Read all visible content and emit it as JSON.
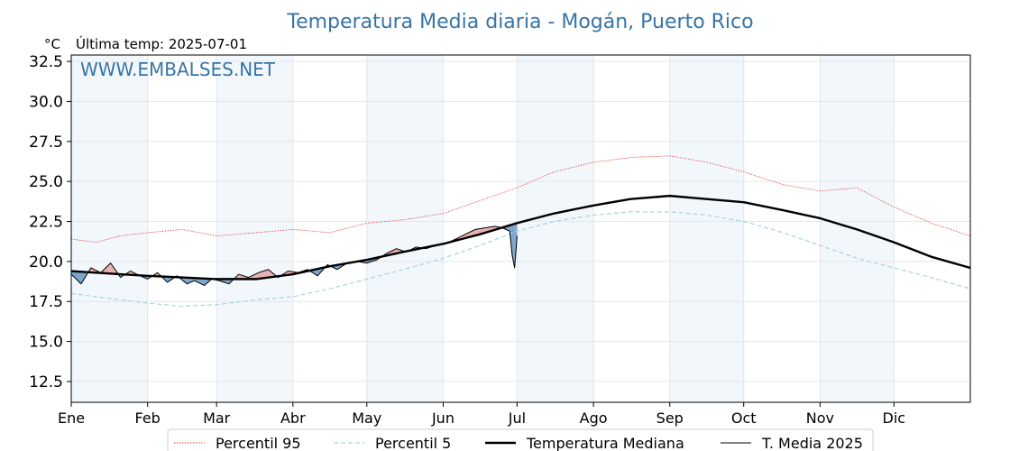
{
  "chart_data": {
    "type": "line",
    "title": "Temperatura Media diaria - Mogán, Puerto Rico",
    "unit_label": "°C",
    "last_temp_label": "Última temp: 2025-07-01",
    "watermark": "WWW.EMBALSES.NET",
    "ylim": [
      11.2,
      32.9
    ],
    "xlim": [
      0,
      365
    ],
    "y_ticks": [
      "12.5",
      "15.0",
      "17.5",
      "20.0",
      "22.5",
      "25.0",
      "27.5",
      "30.0",
      "32.5"
    ],
    "y_tick_values": [
      12.5,
      15.0,
      17.5,
      20.0,
      22.5,
      25.0,
      27.5,
      30.0,
      32.5
    ],
    "months": [
      "Ene",
      "Feb",
      "Mar",
      "Abr",
      "May",
      "Jun",
      "Jul",
      "Ago",
      "Sep",
      "Oct",
      "Nov",
      "Dic"
    ],
    "month_start_days": [
      0,
      31,
      59,
      90,
      120,
      151,
      181,
      212,
      243,
      273,
      304,
      334
    ],
    "shaded_months": [
      0,
      2,
      4,
      6,
      8,
      10
    ],
    "grid": true,
    "legend_position": "bottom-center",
    "series": [
      {
        "key": "p95",
        "name": "Percentil 95",
        "style": "dotted",
        "color": "#e8392f",
        "points": [
          [
            0,
            21.4
          ],
          [
            10,
            21.2
          ],
          [
            20,
            21.6
          ],
          [
            31,
            21.8
          ],
          [
            45,
            22.0
          ],
          [
            59,
            21.6
          ],
          [
            75,
            21.8
          ],
          [
            90,
            22.0
          ],
          [
            105,
            21.8
          ],
          [
            120,
            22.4
          ],
          [
            135,
            22.6
          ],
          [
            151,
            23.0
          ],
          [
            166,
            23.8
          ],
          [
            181,
            24.6
          ],
          [
            196,
            25.6
          ],
          [
            212,
            26.2
          ],
          [
            227,
            26.5
          ],
          [
            243,
            26.6
          ],
          [
            258,
            26.2
          ],
          [
            273,
            25.6
          ],
          [
            289,
            24.8
          ],
          [
            304,
            24.4
          ],
          [
            319,
            24.6
          ],
          [
            334,
            23.4
          ],
          [
            349,
            22.4
          ],
          [
            365,
            21.6
          ]
        ]
      },
      {
        "key": "p5",
        "name": "Percentil 5",
        "style": "dashed",
        "color": "#a8d4e2",
        "points": [
          [
            0,
            18.0
          ],
          [
            10,
            17.8
          ],
          [
            20,
            17.6
          ],
          [
            31,
            17.4
          ],
          [
            45,
            17.2
          ],
          [
            59,
            17.3
          ],
          [
            75,
            17.6
          ],
          [
            90,
            17.8
          ],
          [
            105,
            18.3
          ],
          [
            120,
            18.9
          ],
          [
            135,
            19.5
          ],
          [
            151,
            20.2
          ],
          [
            166,
            21.0
          ],
          [
            181,
            21.9
          ],
          [
            196,
            22.5
          ],
          [
            212,
            22.9
          ],
          [
            227,
            23.1
          ],
          [
            243,
            23.1
          ],
          [
            258,
            22.9
          ],
          [
            273,
            22.5
          ],
          [
            289,
            21.8
          ],
          [
            304,
            21.0
          ],
          [
            319,
            20.2
          ],
          [
            334,
            19.6
          ],
          [
            349,
            19.0
          ],
          [
            365,
            18.3
          ]
        ]
      },
      {
        "key": "median",
        "name": "Temperatura Mediana",
        "style": "solid-thick",
        "color": "#000000",
        "points": [
          [
            0,
            19.4
          ],
          [
            10,
            19.3
          ],
          [
            20,
            19.2
          ],
          [
            31,
            19.1
          ],
          [
            45,
            19.0
          ],
          [
            59,
            18.9
          ],
          [
            75,
            18.9
          ],
          [
            90,
            19.2
          ],
          [
            105,
            19.7
          ],
          [
            120,
            20.1
          ],
          [
            135,
            20.6
          ],
          [
            151,
            21.1
          ],
          [
            166,
            21.7
          ],
          [
            181,
            22.4
          ],
          [
            196,
            23.0
          ],
          [
            212,
            23.5
          ],
          [
            227,
            23.9
          ],
          [
            243,
            24.1
          ],
          [
            258,
            23.9
          ],
          [
            273,
            23.7
          ],
          [
            289,
            23.2
          ],
          [
            304,
            22.7
          ],
          [
            319,
            22.0
          ],
          [
            334,
            21.2
          ],
          [
            349,
            20.3
          ],
          [
            365,
            19.6
          ]
        ]
      },
      {
        "key": "current",
        "name": "T. Media 2025",
        "style": "solid-thin",
        "color": "#000000",
        "points": [
          [
            0,
            19.2
          ],
          [
            4,
            18.6
          ],
          [
            8,
            19.6
          ],
          [
            12,
            19.3
          ],
          [
            16,
            19.9
          ],
          [
            20,
            19.0
          ],
          [
            24,
            19.4
          ],
          [
            28,
            19.1
          ],
          [
            31,
            18.9
          ],
          [
            35,
            19.3
          ],
          [
            39,
            18.7
          ],
          [
            43,
            19.1
          ],
          [
            47,
            18.6
          ],
          [
            50,
            18.8
          ],
          [
            54,
            18.5
          ],
          [
            57,
            18.9
          ],
          [
            60,
            18.8
          ],
          [
            64,
            18.6
          ],
          [
            68,
            19.2
          ],
          [
            72,
            19.0
          ],
          [
            76,
            19.3
          ],
          [
            80,
            19.5
          ],
          [
            84,
            19.0
          ],
          [
            88,
            19.4
          ],
          [
            92,
            19.3
          ],
          [
            96,
            19.5
          ],
          [
            100,
            19.1
          ],
          [
            104,
            19.8
          ],
          [
            108,
            19.5
          ],
          [
            112,
            19.9
          ],
          [
            116,
            20.0
          ],
          [
            120,
            19.9
          ],
          [
            124,
            20.1
          ],
          [
            128,
            20.5
          ],
          [
            132,
            20.8
          ],
          [
            136,
            20.6
          ],
          [
            140,
            20.9
          ],
          [
            144,
            20.8
          ],
          [
            148,
            21.0
          ],
          [
            152,
            21.1
          ],
          [
            156,
            21.4
          ],
          [
            160,
            21.7
          ],
          [
            164,
            22.0
          ],
          [
            168,
            22.1
          ],
          [
            172,
            22.2
          ],
          [
            175,
            22.1
          ],
          [
            178,
            21.9
          ],
          [
            179,
            20.4
          ],
          [
            180,
            19.6
          ],
          [
            181,
            21.6
          ]
        ]
      }
    ]
  }
}
